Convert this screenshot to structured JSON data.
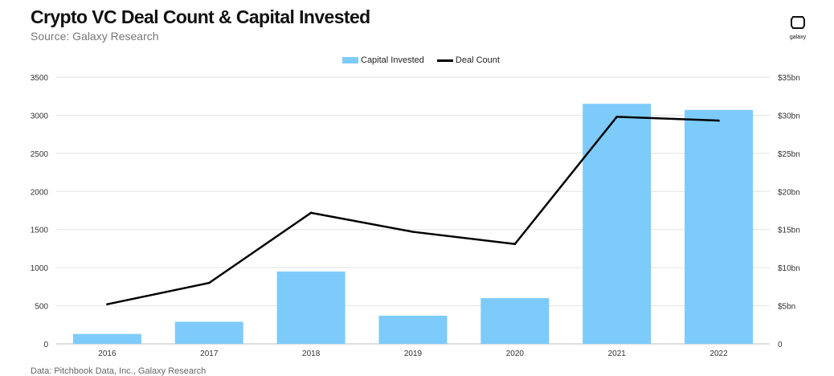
{
  "brand": {
    "label": "galaxy",
    "icon": "galaxy-logo-icon"
  },
  "chart_data": {
    "type": "bar",
    "title": "Crypto VC Deal Count & Capital Invested",
    "subtitle": "Source: Galaxy Research",
    "source_note": "Data: Pitchbook Data, Inc., Galaxy Research",
    "categories": [
      "2016",
      "2017",
      "2018",
      "2019",
      "2020",
      "2021",
      "2022"
    ],
    "series": [
      {
        "name": "Capital Invested",
        "type": "bar",
        "axis": "right",
        "unit": "bn USD",
        "values": [
          1.3,
          2.9,
          9.5,
          3.7,
          6.0,
          31.5,
          30.7
        ],
        "color": "#7dcbfb"
      },
      {
        "name": "Deal Count",
        "type": "line",
        "axis": "left",
        "values": [
          520,
          800,
          1720,
          1470,
          1310,
          2980,
          2930
        ],
        "color": "#000000"
      }
    ],
    "y_left": {
      "ylim": [
        0,
        3500
      ],
      "ticks": [
        "0",
        "500",
        "1000",
        "1500",
        "2000",
        "2500",
        "3000",
        "3500"
      ]
    },
    "y_right": {
      "ylim": [
        0,
        35
      ],
      "ticks": [
        "0",
        "$5bn",
        "$10bn",
        "$15bn",
        "$20bn",
        "$25bn",
        "$30bn",
        "$35bn"
      ]
    },
    "grid": "horizontal",
    "legend": "top-center"
  }
}
